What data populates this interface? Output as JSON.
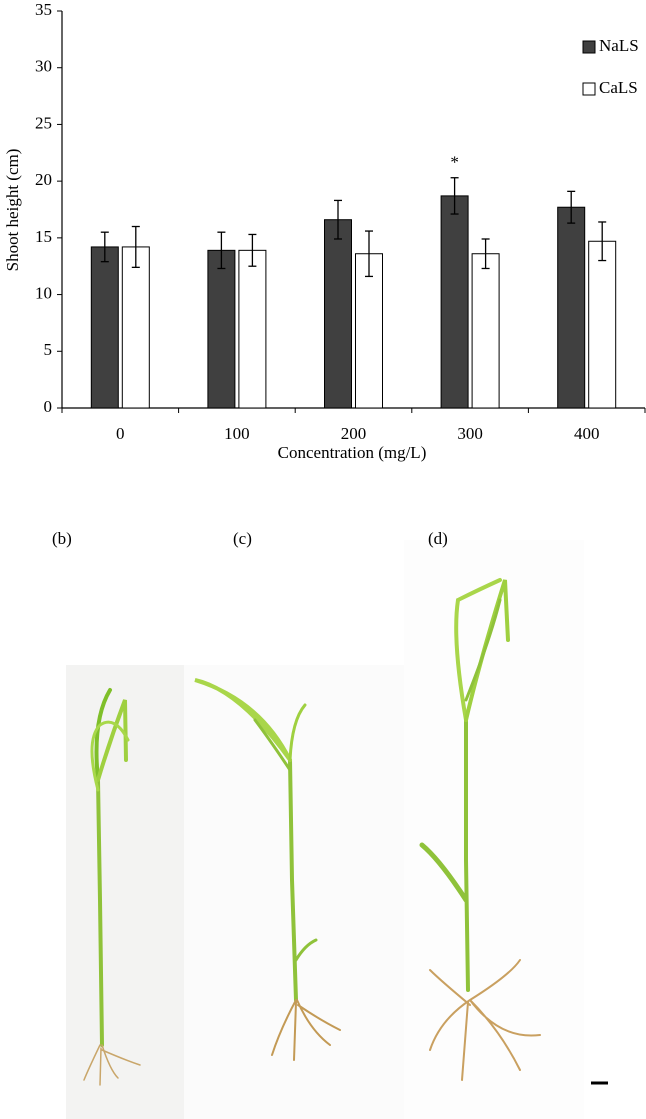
{
  "chart_data": {
    "type": "bar",
    "xlabel": "Concentration (mg/L)",
    "ylabel": "Shoot height (cm)",
    "categories": [
      "0",
      "100",
      "200",
      "300",
      "400"
    ],
    "series": [
      {
        "name": "NaLS",
        "color": "#404040",
        "values": [
          14.2,
          13.9,
          16.6,
          18.7,
          17.7
        ],
        "errors": [
          1.3,
          1.6,
          1.7,
          1.6,
          1.4
        ],
        "significance": [
          null,
          null,
          null,
          "*",
          null
        ]
      },
      {
        "name": "CaLS",
        "color": "#ffffff",
        "values": [
          14.2,
          13.9,
          13.6,
          13.6,
          14.7
        ],
        "errors": [
          1.8,
          1.4,
          2.0,
          1.3,
          1.7
        ]
      }
    ],
    "ylim": [
      0,
      35
    ],
    "yticks": [
      0,
      5,
      10,
      15,
      20,
      25,
      30,
      35
    ],
    "grid": false,
    "legend": "top-right"
  },
  "panels": [
    {
      "label": "(b)"
    },
    {
      "label": "(c)"
    },
    {
      "label": "(d)"
    }
  ]
}
